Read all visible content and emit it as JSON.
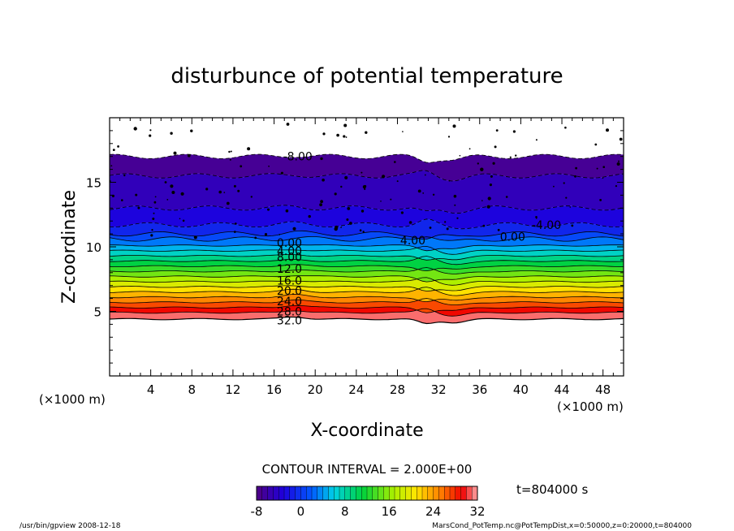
{
  "chart_data": {
    "type": "heatmap",
    "title": "disturbunce of potential temperature",
    "xlabel": "X-coordinate",
    "ylabel": "Z-coordinate",
    "x_unit": "(×1000 m)",
    "z_unit": "(×1000 m)",
    "xlim": [
      0,
      50
    ],
    "ylim": [
      0,
      20
    ],
    "x_ticks": [
      4,
      8,
      12,
      16,
      20,
      24,
      28,
      32,
      36,
      40,
      44,
      48
    ],
    "y_ticks": [
      5,
      10,
      15
    ],
    "contour_interval_label": "CONTOUR INTERVAL = 2.000E+00",
    "time_label": "t=804000 s",
    "colorbar": {
      "min": -8,
      "max": 32,
      "ticks": [
        -8,
        0,
        8,
        16,
        24,
        32
      ]
    },
    "profile": [
      {
        "z": 4.4,
        "value": 32
      },
      {
        "z": 4.9,
        "value": 30
      },
      {
        "z": 5.3,
        "value": 28
      },
      {
        "z": 5.7,
        "value": 26
      },
      {
        "z": 6.1,
        "value": 24
      },
      {
        "z": 6.5,
        "value": 22
      },
      {
        "z": 6.9,
        "value": 20
      },
      {
        "z": 7.3,
        "value": 18
      },
      {
        "z": 7.7,
        "value": 16
      },
      {
        "z": 8.1,
        "value": 14
      },
      {
        "z": 8.5,
        "value": 12
      },
      {
        "z": 8.9,
        "value": 10
      },
      {
        "z": 9.3,
        "value": 8
      },
      {
        "z": 9.7,
        "value": 6
      },
      {
        "z": 10.1,
        "value": 4
      },
      {
        "z": 10.6,
        "value": 2
      },
      {
        "z": 11.0,
        "value": 0
      },
      {
        "z": 11.7,
        "value": -2
      },
      {
        "z": 13.0,
        "value": -4
      },
      {
        "z": 15.5,
        "value": -6
      },
      {
        "z": 17.0,
        "value": -8
      }
    ],
    "contour_labels": [
      {
        "text": "-8.00",
        "x": 18.3,
        "z": 17.0
      },
      {
        "text": "0.00",
        "x": 17.5,
        "z": 10.3
      },
      {
        "text": "4.00",
        "x": 17.5,
        "z": 9.7
      },
      {
        "text": "8.00",
        "x": 17.5,
        "z": 9.2
      },
      {
        "text": "12.0",
        "x": 17.5,
        "z": 8.3
      },
      {
        "text": "16.0",
        "x": 17.5,
        "z": 7.4
      },
      {
        "text": "20.0",
        "x": 17.5,
        "z": 6.6
      },
      {
        "text": "24.0",
        "x": 17.5,
        "z": 5.8
      },
      {
        "text": "28.0",
        "x": 17.5,
        "z": 5.0
      },
      {
        "text": "32.0",
        "x": 17.5,
        "z": 4.3
      },
      {
        "text": "-4.00",
        "x": 42.5,
        "z": 11.7
      },
      {
        "text": "0.00",
        "x": 39.2,
        "z": 10.8
      },
      {
        "text": "4.00",
        "x": 29.5,
        "z": 10.5
      }
    ]
  },
  "footer": {
    "left": "/usr/bin/gpview   2008-12-18",
    "right": "MarsCond_PotTemp.nc@PotTempDist,x=0:50000,z=0:20000,t=804000"
  }
}
